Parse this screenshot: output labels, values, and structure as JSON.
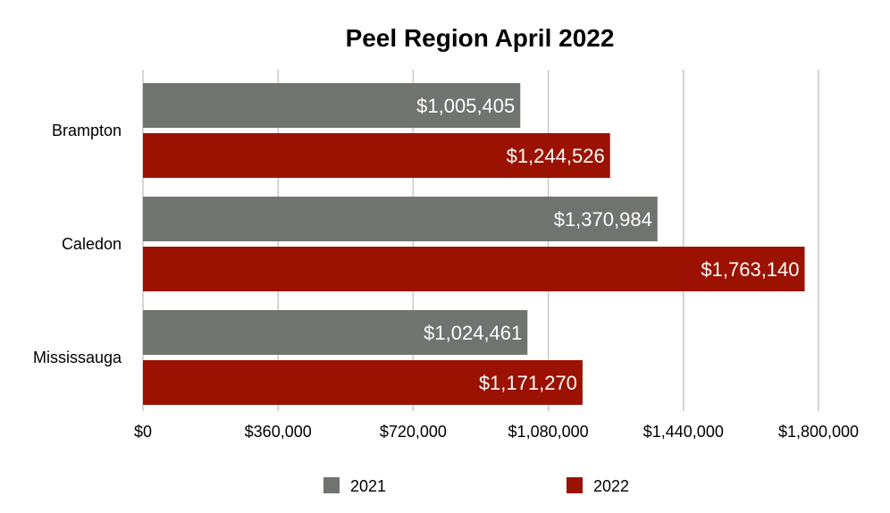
{
  "chart_data": {
    "type": "bar",
    "orientation": "horizontal",
    "title": "Peel Region April 2022",
    "categories": [
      "Brampton",
      "Caledon",
      "Mississauga"
    ],
    "series": [
      {
        "name": "2021",
        "color": "#6f7470",
        "values": [
          1005405,
          1370984,
          1024461
        ],
        "labels": [
          "$1,005,405",
          "$1,370,984",
          "$1,024,461"
        ]
      },
      {
        "name": "2022",
        "color": "#9b1202",
        "values": [
          1244526,
          1763140,
          1171270
        ],
        "labels": [
          "$1,244,526",
          "$1,763,140",
          "$1,171,270"
        ]
      }
    ],
    "xlim": [
      0,
      1800000
    ],
    "xticks": [
      0,
      360000,
      720000,
      1080000,
      1440000,
      1800000
    ],
    "xtick_labels": [
      "$0",
      "$360,000",
      "$720,000",
      "$1,080,000",
      "$1,440,000",
      "$1,800,000"
    ],
    "grid": true,
    "legend": "bottom"
  }
}
